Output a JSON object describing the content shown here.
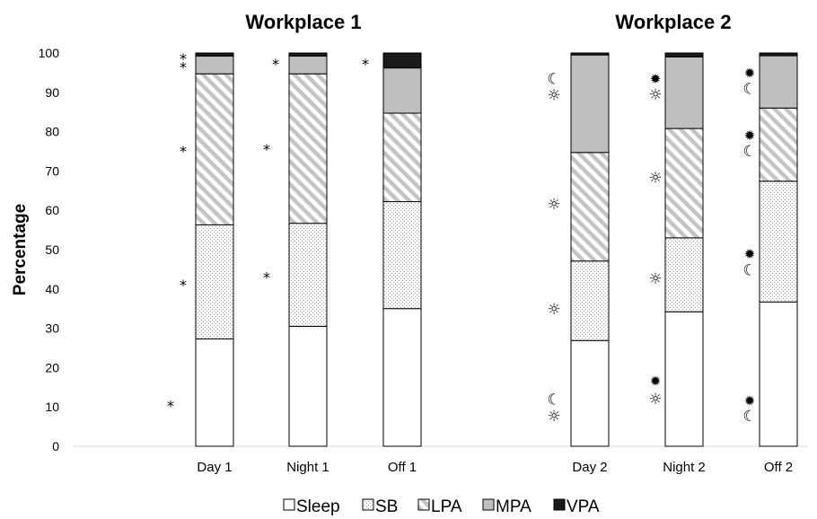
{
  "chart_data": {
    "type": "bar",
    "stacked": true,
    "ylabel": "Percentage",
    "ylim": [
      0,
      100
    ],
    "yticks": [
      0,
      10,
      20,
      30,
      40,
      50,
      60,
      70,
      80,
      90,
      100
    ],
    "grid": false,
    "legend_position": "bottom",
    "panels": [
      {
        "title": "Workplace 1",
        "categories": [
          "Day 1",
          "Night 1",
          "Off 1"
        ],
        "series": [
          {
            "name": "Sleep",
            "values": [
              27.3,
              30.5,
              35.0
            ]
          },
          {
            "name": "SB",
            "values": [
              29.0,
              26.2,
              27.2
            ]
          },
          {
            "name": "LPA",
            "values": [
              38.4,
              38.0,
              22.5
            ]
          },
          {
            "name": "MPA",
            "values": [
              4.5,
              4.5,
              11.5
            ]
          },
          {
            "name": "VPA",
            "values": [
              0.8,
              0.8,
              3.8
            ]
          }
        ]
      },
      {
        "title": "Workplace 2",
        "categories": [
          "Day 2",
          "Night 2",
          "Off 2"
        ],
        "series": [
          {
            "name": "Sleep",
            "values": [
              26.9,
              34.2,
              36.7
            ]
          },
          {
            "name": "SB",
            "values": [
              20.2,
              18.8,
              30.7
            ]
          },
          {
            "name": "LPA",
            "values": [
              27.6,
              27.8,
              18.6
            ]
          },
          {
            "name": "MPA",
            "values": [
              24.8,
              18.2,
              13.3
            ]
          },
          {
            "name": "VPA",
            "values": [
              0.5,
              1.0,
              0.7
            ]
          }
        ]
      }
    ],
    "annotations": [
      {
        "text": "*",
        "category": "Day 1",
        "y": 10.8
      },
      {
        "text": "*",
        "category": "Day 1",
        "y": 41.6
      },
      {
        "text": "*",
        "category": "Day 1",
        "y": 75.6
      },
      {
        "text": "*",
        "category": "Day 1",
        "y": 96.9
      },
      {
        "text": "*",
        "category": "Day 1",
        "y": 99.1
      },
      {
        "text": "*",
        "category": "Night 1",
        "y": 43.5
      },
      {
        "text": "*",
        "category": "Night 1",
        "y": 76.0
      },
      {
        "text": "*",
        "category": "Night 1",
        "y": 97.7
      },
      {
        "text": "*",
        "category": "Off 1",
        "y": 97.7
      },
      {
        "text": "☼",
        "category": "Day 2",
        "y": 7.5
      },
      {
        "text": "☾",
        "category": "Day 2",
        "y": 11.8
      },
      {
        "text": "☼",
        "category": "Day 2",
        "y": 34.7
      },
      {
        "text": "☼",
        "category": "Day 2",
        "y": 61.4
      },
      {
        "text": "☼",
        "category": "Day 2",
        "y": 89.1
      },
      {
        "text": "☾",
        "category": "Day 2",
        "y": 93.3
      },
      {
        "text": "☼",
        "category": "Night 2",
        "y": 11.9
      },
      {
        "text": "✹",
        "category": "Night 2",
        "y": 16.5
      },
      {
        "text": "☼",
        "category": "Night 2",
        "y": 42.5
      },
      {
        "text": "☼",
        "category": "Night 2",
        "y": 68.2
      },
      {
        "text": "☼",
        "category": "Night 2",
        "y": 89.3
      },
      {
        "text": "✹",
        "category": "Night 2",
        "y": 93.4
      },
      {
        "text": "☾",
        "category": "Off 2",
        "y": 7.5
      },
      {
        "text": "✹",
        "category": "Off 2",
        "y": 11.5
      },
      {
        "text": "☾",
        "category": "Off 2",
        "y": 44.6
      },
      {
        "text": "✹",
        "category": "Off 2",
        "y": 48.9
      },
      {
        "text": "☾",
        "category": "Off 2",
        "y": 74.9
      },
      {
        "text": "✹",
        "category": "Off 2",
        "y": 79.0
      },
      {
        "text": "☾",
        "category": "Off 2",
        "y": 90.8
      },
      {
        "text": "✹",
        "category": "Off 2",
        "y": 94.9
      }
    ]
  }
}
